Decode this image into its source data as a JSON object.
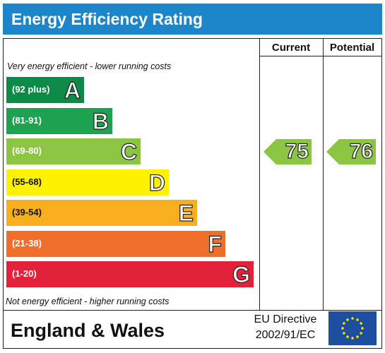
{
  "header": {
    "title": "Energy Efficiency Rating"
  },
  "columns": {
    "current": "Current",
    "potential": "Potential"
  },
  "notes": {
    "top": "Very energy efficient - lower running costs",
    "bottom": "Not energy efficient - higher running costs"
  },
  "footer": {
    "region": "England & Wales",
    "directive_line1": "EU Directive",
    "directive_line2": "2002/91/EC",
    "flag_icon": "eu-flag-icon"
  },
  "chart_data": {
    "type": "bar",
    "title": "Energy Efficiency Rating",
    "categories": [
      "A",
      "B",
      "C",
      "D",
      "E",
      "F",
      "G"
    ],
    "ranges": [
      "(92 plus)",
      "(81-91)",
      "(69-80)",
      "(55-68)",
      "(39-54)",
      "(21-38)",
      "(1-20)"
    ],
    "colors": [
      "#0d8a47",
      "#1ca251",
      "#8cc542",
      "#fff200",
      "#f7af1d",
      "#ef6e2a",
      "#e32239"
    ],
    "current": {
      "label": "Current",
      "value": 75,
      "band": "C",
      "color": "#8cc542"
    },
    "potential": {
      "label": "Potential",
      "value": 76,
      "band": "C",
      "color": "#8cc542"
    }
  }
}
